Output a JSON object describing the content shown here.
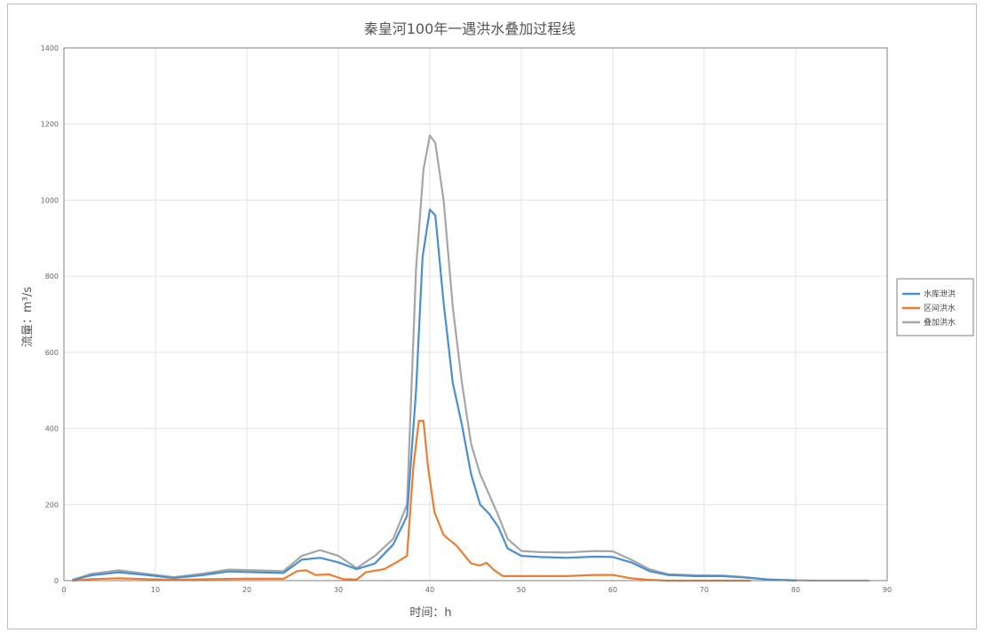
{
  "chart_data": {
    "type": "line",
    "title": "秦皇河100年一遇洪水叠加过程线",
    "xlabel": "时间：h",
    "ylabel": "流量：m³/s",
    "xlim": [
      0,
      90
    ],
    "ylim": [
      0,
      1400
    ],
    "xticks": [
      0,
      10,
      20,
      30,
      40,
      50,
      60,
      70,
      80,
      90
    ],
    "yticks": [
      0,
      200,
      400,
      600,
      800,
      1000,
      1200,
      1400
    ],
    "grid": true,
    "legend_position": "right",
    "series": [
      {
        "name": "水库泄洪",
        "color": "#4a8fd0",
        "points": [
          [
            1,
            2
          ],
          [
            3,
            14
          ],
          [
            6,
            22
          ],
          [
            9,
            15
          ],
          [
            12,
            7
          ],
          [
            15,
            14
          ],
          [
            18,
            24
          ],
          [
            21,
            22
          ],
          [
            24,
            20
          ],
          [
            26,
            55
          ],
          [
            28,
            60
          ],
          [
            30,
            48
          ],
          [
            32,
            30
          ],
          [
            34,
            45
          ],
          [
            36,
            95
          ],
          [
            37.5,
            170
          ],
          [
            38.5,
            500
          ],
          [
            39.2,
            850
          ],
          [
            40,
            975
          ],
          [
            40.6,
            960
          ],
          [
            41.5,
            730
          ],
          [
            42.5,
            520
          ],
          [
            43.5,
            410
          ],
          [
            44.5,
            280
          ],
          [
            45.5,
            200
          ],
          [
            46.5,
            175
          ],
          [
            47.5,
            140
          ],
          [
            48.5,
            85
          ],
          [
            50,
            65
          ],
          [
            52,
            62
          ],
          [
            55,
            60
          ],
          [
            58,
            63
          ],
          [
            60,
            62
          ],
          [
            62,
            48
          ],
          [
            64,
            25
          ],
          [
            66,
            15
          ],
          [
            69,
            12
          ],
          [
            72,
            12
          ],
          [
            74,
            9
          ],
          [
            77,
            3
          ],
          [
            80,
            0
          ]
        ]
      },
      {
        "name": "区间洪水",
        "color": "#ec7d31",
        "points": [
          [
            1,
            0
          ],
          [
            3,
            4
          ],
          [
            6,
            6
          ],
          [
            9,
            4
          ],
          [
            12,
            2
          ],
          [
            16,
            4
          ],
          [
            20,
            5
          ],
          [
            24,
            5
          ],
          [
            25.5,
            25
          ],
          [
            26.5,
            27
          ],
          [
            27.5,
            15
          ],
          [
            29,
            16
          ],
          [
            30.5,
            4
          ],
          [
            32,
            3
          ],
          [
            33,
            22
          ],
          [
            35,
            30
          ],
          [
            36.5,
            50
          ],
          [
            37.5,
            65
          ],
          [
            38.2,
            300
          ],
          [
            38.8,
            420
          ],
          [
            39.3,
            420
          ],
          [
            39.8,
            300
          ],
          [
            40.5,
            180
          ],
          [
            41.5,
            120
          ],
          [
            43,
            90
          ],
          [
            44.5,
            45
          ],
          [
            45.5,
            40
          ],
          [
            46.2,
            47
          ],
          [
            47,
            28
          ],
          [
            48,
            12
          ],
          [
            50,
            12
          ],
          [
            55,
            12
          ],
          [
            58,
            15
          ],
          [
            60,
            15
          ],
          [
            62,
            6
          ],
          [
            64,
            2
          ],
          [
            66,
            0
          ],
          [
            75,
            0
          ]
        ]
      },
      {
        "name": "叠加洪水",
        "color": "#a6a6a6",
        "points": [
          [
            1,
            2
          ],
          [
            3,
            18
          ],
          [
            6,
            27
          ],
          [
            9,
            18
          ],
          [
            12,
            9
          ],
          [
            15,
            18
          ],
          [
            18,
            29
          ],
          [
            21,
            27
          ],
          [
            24,
            25
          ],
          [
            26,
            65
          ],
          [
            28,
            80
          ],
          [
            30,
            65
          ],
          [
            32,
            33
          ],
          [
            34,
            65
          ],
          [
            36,
            110
          ],
          [
            37.5,
            200
          ],
          [
            38.5,
            820
          ],
          [
            39.3,
            1080
          ],
          [
            40,
            1170
          ],
          [
            40.6,
            1150
          ],
          [
            41.5,
            1000
          ],
          [
            42.5,
            720
          ],
          [
            43.5,
            520
          ],
          [
            44.5,
            360
          ],
          [
            45.5,
            280
          ],
          [
            46.5,
            225
          ],
          [
            47.5,
            170
          ],
          [
            48.5,
            110
          ],
          [
            50,
            78
          ],
          [
            52,
            75
          ],
          [
            55,
            74
          ],
          [
            58,
            78
          ],
          [
            60,
            77
          ],
          [
            62,
            55
          ],
          [
            64,
            30
          ],
          [
            66,
            17
          ],
          [
            69,
            14
          ],
          [
            72,
            13
          ],
          [
            74,
            10
          ],
          [
            77,
            3
          ],
          [
            82,
            0
          ],
          [
            88,
            0
          ]
        ]
      }
    ]
  }
}
